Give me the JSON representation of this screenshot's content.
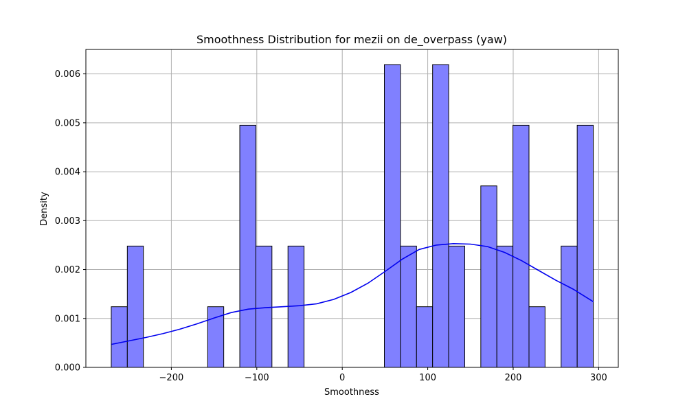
{
  "chart_data": {
    "type": "bar",
    "subtype": "histogram-with-kde",
    "title": "Smoothness Distribution for mezii on de_overpass (yaw)",
    "xlabel": "Smoothness",
    "ylabel": "Density",
    "xlim": [
      -300,
      323
    ],
    "ylim": [
      0,
      0.0065
    ],
    "x_ticks": [
      -200,
      -100,
      0,
      100,
      200,
      300
    ],
    "x_tick_labels": [
      "−200",
      "−100",
      "0",
      "100",
      "200",
      "300"
    ],
    "y_ticks": [
      0.0,
      0.001,
      0.002,
      0.003,
      0.004,
      0.005,
      0.006
    ],
    "y_tick_labels": [
      "0.000",
      "0.001",
      "0.002",
      "0.003",
      "0.004",
      "0.005",
      "0.006"
    ],
    "grid": true,
    "bin_edges": [
      -270.3,
      -251.5,
      -232.7,
      -213.9,
      -195.1,
      -176.3,
      -157.5,
      -138.7,
      -119.9,
      -101.1,
      -82.3,
      -63.5,
      -44.7,
      -25.9,
      -7.1,
      11.7,
      30.5,
      49.3,
      68.1,
      86.9,
      105.7,
      124.5,
      143.3,
      162.1,
      180.9,
      199.7,
      218.5,
      237.3,
      256.1,
      274.9,
      293.7
    ],
    "values": [
      0.00124,
      0.00248,
      0,
      0,
      0,
      0,
      0.00124,
      0,
      0.00495,
      0.00248,
      0,
      0.00248,
      0,
      0,
      0,
      0,
      0,
      0.00619,
      0.00248,
      0.00124,
      0.00619,
      0.00248,
      0,
      0.00371,
      0.00248,
      0.00495,
      0.00124,
      0,
      0.00248,
      0.00495
    ],
    "bar_color": "#8080ff",
    "bar_edge_color": "#000000",
    "kde": {
      "color": "#0000ee",
      "x": [
        -270,
        -250,
        -230,
        -210,
        -190,
        -170,
        -150,
        -130,
        -110,
        -90,
        -70,
        -50,
        -30,
        -10,
        10,
        30,
        50,
        70,
        90,
        110,
        130,
        150,
        170,
        190,
        210,
        230,
        250,
        270,
        294
      ],
      "y": [
        0.00047,
        0.00054,
        0.00061,
        0.00069,
        0.00078,
        0.00089,
        0.00101,
        0.00112,
        0.00119,
        0.00122,
        0.00124,
        0.00126,
        0.0013,
        0.00139,
        0.00153,
        0.00172,
        0.00196,
        0.00221,
        0.00241,
        0.0025,
        0.00253,
        0.00252,
        0.00247,
        0.00235,
        0.00218,
        0.00198,
        0.00178,
        0.0016,
        0.00134
      ]
    }
  }
}
